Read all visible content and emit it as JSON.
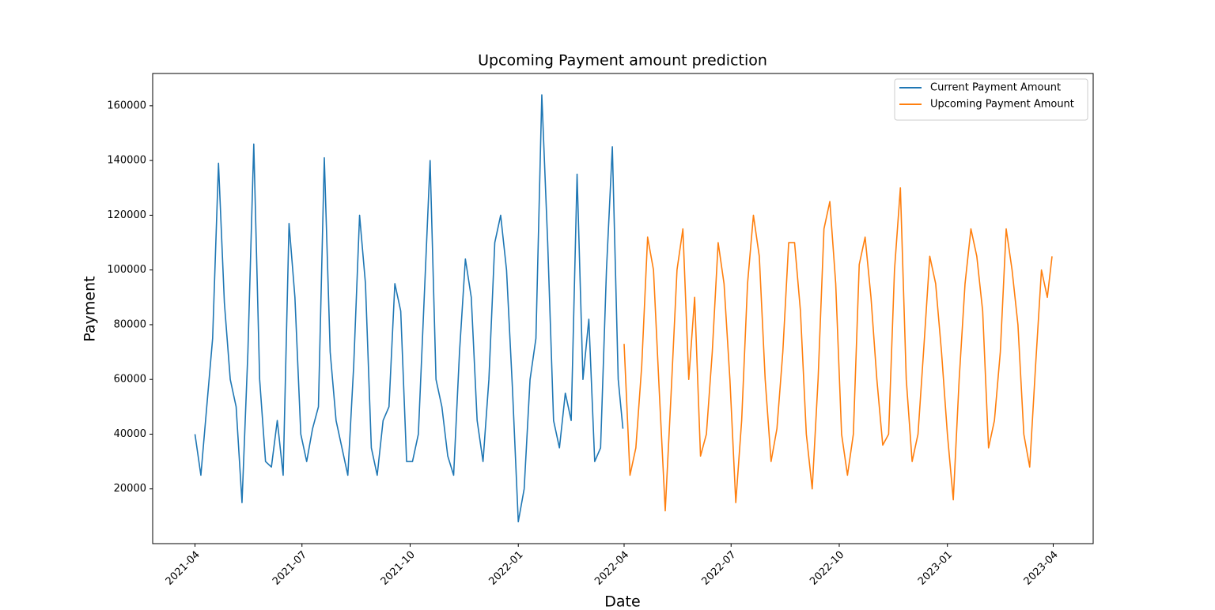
{
  "chart_data": {
    "type": "line",
    "title": "Upcoming Payment amount prediction",
    "x_label": "Date",
    "y_label": "Payment",
    "xlim": [
      "2021-02-24",
      "2023-05-05"
    ],
    "ylim": [
      0,
      171800
    ],
    "xticks": [
      {
        "value": "2021-04-01",
        "label": "2021-04"
      },
      {
        "value": "2021-07-01",
        "label": "2021-07"
      },
      {
        "value": "2021-10-01",
        "label": "2021-10"
      },
      {
        "value": "2022-01-01",
        "label": "2022-01"
      },
      {
        "value": "2022-04-01",
        "label": "2022-04"
      },
      {
        "value": "2022-07-01",
        "label": "2022-07"
      },
      {
        "value": "2022-10-01",
        "label": "2022-10"
      },
      {
        "value": "2023-01-01",
        "label": "2023-01"
      },
      {
        "value": "2023-04-01",
        "label": "2023-04"
      }
    ],
    "yticks": [
      20000,
      40000,
      60000,
      80000,
      100000,
      120000,
      140000,
      160000
    ],
    "grid": false,
    "legend": "upper right",
    "series": [
      {
        "name": "Current Payment Amount",
        "color": "#1f77b4",
        "x": [
          "2021-04-01",
          "2021-04-06",
          "2021-04-11",
          "2021-04-16",
          "2021-04-21",
          "2021-04-26",
          "2021-05-01",
          "2021-05-06",
          "2021-05-11",
          "2021-05-16",
          "2021-05-21",
          "2021-05-26",
          "2021-05-31",
          "2021-06-05",
          "2021-06-10",
          "2021-06-15",
          "2021-06-20",
          "2021-06-25",
          "2021-06-30",
          "2021-07-05",
          "2021-07-10",
          "2021-07-15",
          "2021-07-20",
          "2021-07-25",
          "2021-07-30",
          "2021-08-04",
          "2021-08-09",
          "2021-08-14",
          "2021-08-19",
          "2021-08-24",
          "2021-08-29",
          "2021-09-03",
          "2021-09-08",
          "2021-09-13",
          "2021-09-18",
          "2021-09-23",
          "2021-09-28",
          "2021-10-03",
          "2021-10-08",
          "2021-10-13",
          "2021-10-18",
          "2021-10-23",
          "2021-10-28",
          "2021-11-02",
          "2021-11-07",
          "2021-11-12",
          "2021-11-17",
          "2021-11-22",
          "2021-11-27",
          "2021-12-02",
          "2021-12-07",
          "2021-12-12",
          "2021-12-17",
          "2021-12-22",
          "2021-12-27",
          "2022-01-01",
          "2022-01-06",
          "2022-01-11",
          "2022-01-16",
          "2022-01-21",
          "2022-01-26",
          "2022-01-31",
          "2022-02-05",
          "2022-02-10",
          "2022-02-15",
          "2022-02-20",
          "2022-02-25",
          "2022-03-02",
          "2022-03-07",
          "2022-03-12",
          "2022-03-17",
          "2022-03-22",
          "2022-03-27",
          "2022-03-31"
        ],
        "values": [
          40000,
          25000,
          50000,
          75000,
          139000,
          88000,
          60000,
          50000,
          15000,
          70000,
          146000,
          60000,
          30000,
          28000,
          45000,
          25000,
          117000,
          90000,
          40000,
          30000,
          42000,
          50000,
          141000,
          70000,
          45000,
          35000,
          25000,
          65000,
          120000,
          95000,
          35000,
          25000,
          45000,
          50000,
          95000,
          85000,
          30000,
          30000,
          40000,
          90000,
          140000,
          60000,
          50000,
          32000,
          25000,
          70000,
          104000,
          90000,
          45000,
          30000,
          60000,
          110000,
          120000,
          100000,
          57000,
          8000,
          20000,
          60000,
          75000,
          164000,
          110000,
          45000,
          35000,
          55000,
          45000,
          135000,
          60000,
          82000,
          30000,
          35000,
          100000,
          145000,
          60000,
          42000
        ]
      },
      {
        "name": "Upcoming Payment Amount",
        "color": "#ff7f0e",
        "x": [
          "2022-04-01",
          "2022-04-06",
          "2022-04-11",
          "2022-04-16",
          "2022-04-21",
          "2022-04-26",
          "2022-05-01",
          "2022-05-06",
          "2022-05-11",
          "2022-05-16",
          "2022-05-21",
          "2022-05-26",
          "2022-05-31",
          "2022-06-05",
          "2022-06-10",
          "2022-06-15",
          "2022-06-20",
          "2022-06-25",
          "2022-06-30",
          "2022-07-05",
          "2022-07-10",
          "2022-07-15",
          "2022-07-20",
          "2022-07-25",
          "2022-07-30",
          "2022-08-04",
          "2022-08-09",
          "2022-08-14",
          "2022-08-19",
          "2022-08-24",
          "2022-08-29",
          "2022-09-03",
          "2022-09-08",
          "2022-09-13",
          "2022-09-18",
          "2022-09-23",
          "2022-09-28",
          "2022-10-03",
          "2022-10-08",
          "2022-10-13",
          "2022-10-18",
          "2022-10-23",
          "2022-10-28",
          "2022-11-02",
          "2022-11-07",
          "2022-11-12",
          "2022-11-17",
          "2022-11-22",
          "2022-11-27",
          "2022-12-02",
          "2022-12-07",
          "2022-12-12",
          "2022-12-17",
          "2022-12-22",
          "2022-12-27",
          "2023-01-01",
          "2023-01-06",
          "2023-01-11",
          "2023-01-16",
          "2023-01-21",
          "2023-01-26",
          "2023-01-31",
          "2023-02-05",
          "2023-02-10",
          "2023-02-15",
          "2023-02-20",
          "2023-02-25",
          "2023-03-02",
          "2023-03-07",
          "2023-03-12",
          "2023-03-17",
          "2023-03-22",
          "2023-03-27",
          "2023-03-31"
        ],
        "values": [
          73000,
          25000,
          35000,
          65000,
          112000,
          100000,
          55000,
          12000,
          55000,
          100000,
          115000,
          60000,
          90000,
          32000,
          40000,
          70000,
          110000,
          95000,
          60000,
          15000,
          45000,
          95000,
          120000,
          105000,
          60000,
          30000,
          42000,
          70000,
          110000,
          110000,
          85000,
          40000,
          20000,
          60000,
          115000,
          125000,
          95000,
          40000,
          25000,
          40000,
          102000,
          112000,
          90000,
          60000,
          36000,
          40000,
          100000,
          130000,
          60000,
          30000,
          40000,
          72000,
          105000,
          95000,
          70000,
          40000,
          16000,
          60000,
          95000,
          115000,
          105000,
          85000,
          35000,
          45000,
          70000,
          115000,
          100000,
          80000,
          40000,
          28000,
          65000,
          100000,
          90000,
          105000
        ]
      }
    ]
  }
}
